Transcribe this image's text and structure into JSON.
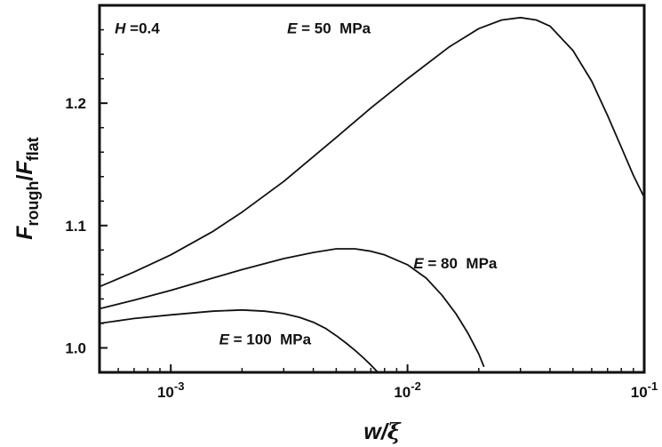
{
  "chart_data": {
    "type": "line",
    "xlabel": {
      "main": "w/",
      "greek": "ξ"
    },
    "ylabel": {
      "num": "F",
      "num_sub": "rough",
      "sep": "/",
      "den": "F",
      "den_sub": "flat"
    },
    "x_scale": "log",
    "xlim": [
      0.0005,
      0.1
    ],
    "ylim": [
      0.98,
      1.28
    ],
    "x_ticks": [
      {
        "value": 0.001,
        "base": "10",
        "exp": "-3"
      },
      {
        "value": 0.01,
        "base": "10",
        "exp": "-2"
      },
      {
        "value": 0.1,
        "base": "10",
        "exp": "-1"
      }
    ],
    "y_ticks": [
      {
        "value": 1.0,
        "label": "1.0"
      },
      {
        "value": 1.1,
        "label": "1.1"
      },
      {
        "value": 1.2,
        "label": "1.2"
      }
    ],
    "grid": false,
    "annotations": [
      {
        "name": "h-annotation",
        "italic": "H",
        "rest": " =0.4",
        "x": 0.00058,
        "y": 1.257
      },
      {
        "name": "e50-annotation",
        "italic": "E",
        "rest": " = 50  MPa",
        "x": 0.0031,
        "y": 1.257
      },
      {
        "name": "e80-annotation",
        "italic": "E",
        "rest": " = 80  MPa",
        "x": 0.0106,
        "y": 1.065
      },
      {
        "name": "e100-annotation",
        "italic": "E",
        "rest": " = 100  MPa",
        "x": 0.0016,
        "y": 1.003
      }
    ],
    "series": [
      {
        "x": [
          0.0005,
          0.0007,
          0.001,
          0.0015,
          0.002,
          0.003,
          0.005,
          0.007,
          0.01,
          0.015,
          0.02,
          0.025,
          0.03,
          0.035,
          0.04,
          0.05,
          0.06,
          0.07,
          0.08,
          0.09,
          0.1
        ],
        "y": [
          1.05,
          1.062,
          1.076,
          1.095,
          1.111,
          1.136,
          1.172,
          1.196,
          1.22,
          1.246,
          1.261,
          1.268,
          1.27,
          1.268,
          1.263,
          1.243,
          1.218,
          1.19,
          1.164,
          1.141,
          1.123
        ]
      },
      {
        "x": [
          0.0005,
          0.0007,
          0.001,
          0.0015,
          0.002,
          0.003,
          0.004,
          0.005,
          0.006,
          0.007,
          0.008,
          0.01,
          0.012,
          0.014,
          0.016,
          0.018,
          0.02,
          0.021
        ],
        "y": [
          1.032,
          1.039,
          1.047,
          1.057,
          1.064,
          1.073,
          1.078,
          1.081,
          1.081,
          1.079,
          1.076,
          1.068,
          1.057,
          1.043,
          1.028,
          1.012,
          0.995,
          0.985
        ]
      },
      {
        "x": [
          0.0005,
          0.0007,
          0.001,
          0.0015,
          0.002,
          0.0025,
          0.003,
          0.0035,
          0.004,
          0.0045,
          0.005,
          0.0055,
          0.006,
          0.0065,
          0.007,
          0.0075,
          0.0078
        ],
        "y": [
          1.02,
          1.024,
          1.027,
          1.03,
          1.031,
          1.03,
          1.028,
          1.025,
          1.021,
          1.016,
          1.01,
          1.004,
          0.998,
          0.992,
          0.986,
          0.98,
          0.977
        ]
      }
    ]
  }
}
